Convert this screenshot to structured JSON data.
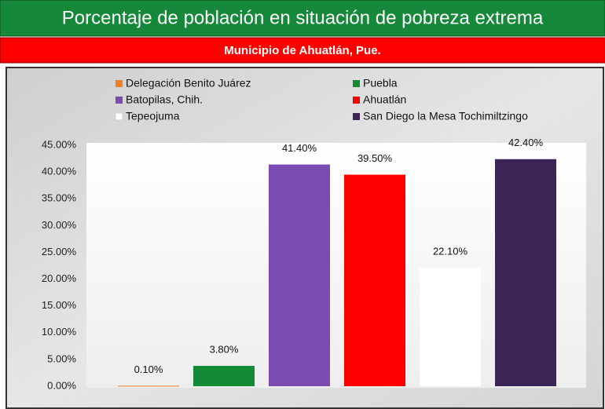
{
  "chart_data": {
    "type": "bar",
    "title": "Porcentaje de población en situación de pobreza extrema",
    "subtitle": "Municipio de Ahuatlán, Pue.",
    "categories": [
      "Delegación Benito Juárez",
      "Puebla",
      "Batopilas, Chih.",
      "Ahuatlán",
      "Tepeojuma",
      "San Diego la Mesa Tochimiltzingo"
    ],
    "values": [
      0.1,
      3.8,
      41.4,
      39.5,
      22.1,
      42.4
    ],
    "value_labels": [
      "0.10%",
      "3.80%",
      "41.40%",
      "39.50%",
      "22.10%",
      "42.40%"
    ],
    "colors": [
      "#f07f2a",
      "#138a36",
      "#7a4bb0",
      "#ff0000",
      "#ffffff",
      "#3a2556"
    ],
    "ylim": [
      0,
      45
    ],
    "yticks": [
      {
        "value": 0,
        "label": "0.00%"
      },
      {
        "value": 5,
        "label": "5.00%"
      },
      {
        "value": 10,
        "label": "10.00%"
      },
      {
        "value": 15,
        "label": "15.00%"
      },
      {
        "value": 20,
        "label": "20.00%"
      },
      {
        "value": 25,
        "label": "25.00%"
      },
      {
        "value": 30,
        "label": "30.00%"
      },
      {
        "value": 35,
        "label": "35.00%"
      },
      {
        "value": 40,
        "label": "40.00%"
      },
      {
        "value": 45,
        "label": "45.00%"
      }
    ],
    "grid": false
  }
}
